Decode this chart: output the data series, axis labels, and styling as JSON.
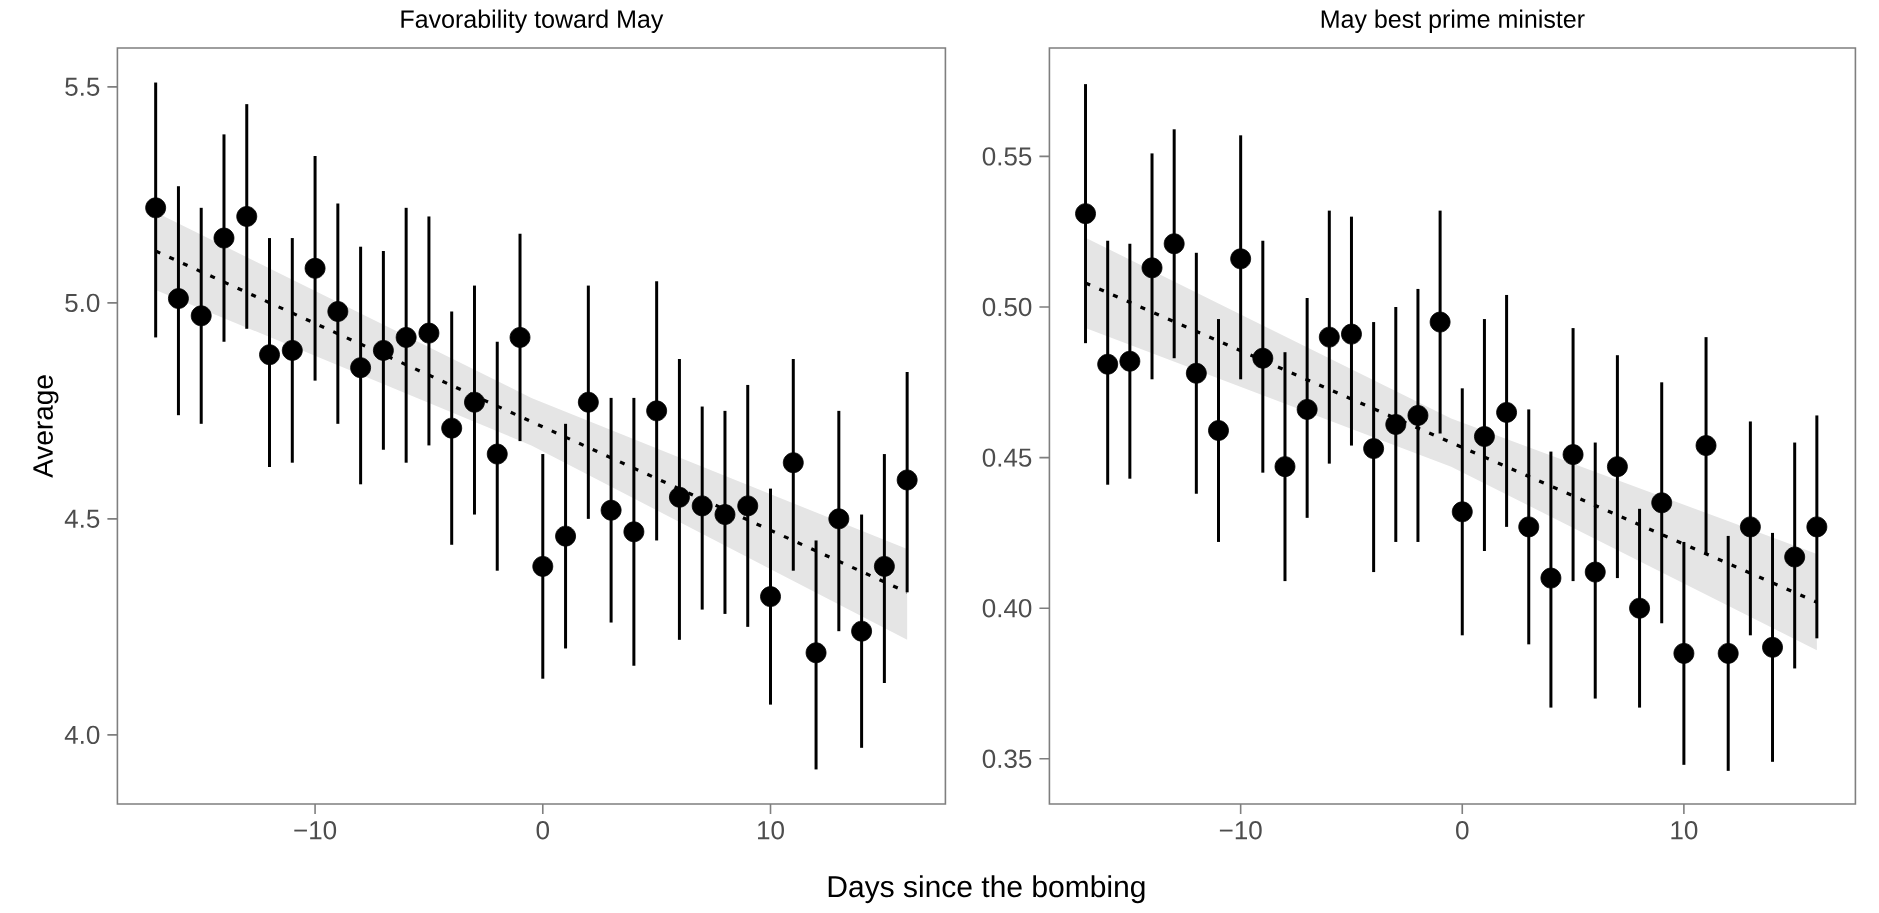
{
  "chart_data": [
    {
      "type": "scatter",
      "title": "Favorability toward May",
      "xlabel": "Days since the bombing",
      "ylabel": "Average",
      "xlim": [
        -18.68,
        17.68
      ],
      "ylim": [
        3.84,
        5.59
      ],
      "xticks": [
        {
          "value": -10,
          "label": "−10"
        },
        {
          "value": 0,
          "label": "0"
        },
        {
          "value": 10,
          "label": "10"
        }
      ],
      "yticks": [
        {
          "value": 4,
          "label": "4.0"
        },
        {
          "value": 4.5,
          "label": "4.5"
        },
        {
          "value": 5,
          "label": "5.0"
        },
        {
          "value": 5.5,
          "label": "5.5"
        }
      ],
      "x": [
        -17,
        -16,
        -15,
        -14,
        -13,
        -12,
        -11,
        -10,
        -9,
        -8,
        -7,
        -6,
        -5,
        -4,
        -3,
        -2,
        -1,
        0,
        1,
        2,
        3,
        4,
        5,
        6,
        7,
        8,
        9,
        10,
        11,
        12,
        13,
        14,
        15,
        16
      ],
      "series": [
        {
          "type": "line",
          "color": "#000000",
          "line_style": "dotted",
          "marker": "none",
          "x": [
            -17,
            -0.5,
            16
          ],
          "values": [
            5.12,
            4.725,
            4.33
          ],
          "lower": [
            5.03,
            4.67,
            4.22
          ],
          "upper": [
            5.21,
            4.78,
            4.43
          ]
        },
        {
          "color": "#000000",
          "marker": "circle",
          "values": [
            5.22,
            5.01,
            4.97,
            5.15,
            5.2,
            4.88,
            4.89,
            5.08,
            4.98,
            4.85,
            4.89,
            4.92,
            4.93,
            4.71,
            4.77,
            4.65,
            4.92,
            4.39,
            4.46,
            4.77,
            4.52,
            4.47,
            4.75,
            4.55,
            4.53,
            4.51,
            4.53,
            4.32,
            4.63,
            4.19,
            4.5,
            4.24,
            4.39,
            4.59
          ],
          "errors": [
            [
              4.92,
              5.51
            ],
            [
              4.74,
              5.27
            ],
            [
              4.72,
              5.22
            ],
            [
              4.91,
              5.39
            ],
            [
              4.94,
              5.46
            ],
            [
              4.62,
              5.15
            ],
            [
              4.63,
              5.15
            ],
            [
              4.82,
              5.34
            ],
            [
              4.72,
              5.23
            ],
            [
              4.58,
              5.13
            ],
            [
              4.66,
              5.12
            ],
            [
              4.63,
              5.22
            ],
            [
              4.67,
              5.2
            ],
            [
              4.44,
              4.98
            ],
            [
              4.51,
              5.04
            ],
            [
              4.38,
              4.91
            ],
            [
              4.68,
              5.16
            ],
            [
              4.13,
              4.65
            ],
            [
              4.2,
              4.72
            ],
            [
              4.5,
              5.04
            ],
            [
              4.26,
              4.78
            ],
            [
              4.16,
              4.78
            ],
            [
              4.45,
              5.05
            ],
            [
              4.22,
              4.87
            ],
            [
              4.29,
              4.76
            ],
            [
              4.28,
              4.75
            ],
            [
              4.25,
              4.81
            ],
            [
              4.07,
              4.57
            ],
            [
              4.38,
              4.87
            ],
            [
              3.92,
              4.45
            ],
            [
              4.24,
              4.75
            ],
            [
              3.97,
              4.51
            ],
            [
              4.12,
              4.65
            ],
            [
              4.33,
              4.84
            ]
          ]
        }
      ]
    },
    {
      "type": "scatter",
      "title": "May best prime minister",
      "xlim": [
        -18.63,
        17.74
      ],
      "ylim": [
        0.335,
        0.586
      ],
      "xticks": [
        {
          "value": -10,
          "label": "−10"
        },
        {
          "value": 0,
          "label": "0"
        },
        {
          "value": 10,
          "label": "10"
        }
      ],
      "yticks": [
        {
          "value": 0.35,
          "label": "0.35"
        },
        {
          "value": 0.4,
          "label": "0.40"
        },
        {
          "value": 0.45,
          "label": "0.45"
        },
        {
          "value": 0.5,
          "label": "0.50"
        },
        {
          "value": 0.55,
          "label": "0.55"
        }
      ],
      "x": [
        -17,
        -16,
        -15,
        -14,
        -13,
        -12,
        -11,
        -10,
        -9,
        -8,
        -7,
        -6,
        -5,
        -4,
        -3,
        -2,
        -1,
        0,
        1,
        2,
        3,
        4,
        5,
        6,
        7,
        8,
        9,
        10,
        11,
        12,
        13,
        14,
        15,
        16
      ],
      "series": [
        {
          "type": "line",
          "color": "#000000",
          "line_style": "dotted",
          "marker": "none",
          "x": [
            -17,
            -0.5,
            16
          ],
          "values": [
            0.508,
            0.455,
            0.402
          ],
          "lower": [
            0.493,
            0.447,
            0.386
          ],
          "upper": [
            0.523,
            0.463,
            0.418
          ]
        },
        {
          "color": "#000000",
          "marker": "circle",
          "values": [
            0.531,
            0.481,
            0.482,
            0.513,
            0.521,
            0.478,
            0.459,
            0.516,
            0.483,
            0.447,
            0.466,
            0.49,
            0.491,
            0.453,
            0.461,
            0.464,
            0.495,
            0.432,
            0.457,
            0.465,
            0.427,
            0.41,
            0.451,
            0.412,
            0.447,
            0.4,
            0.435,
            0.385,
            0.454,
            0.385,
            0.427,
            0.387,
            0.417,
            0.427
          ],
          "errors": [
            [
              0.488,
              0.574
            ],
            [
              0.441,
              0.522
            ],
            [
              0.443,
              0.521
            ],
            [
              0.476,
              0.551
            ],
            [
              0.483,
              0.559
            ],
            [
              0.438,
              0.518
            ],
            [
              0.422,
              0.496
            ],
            [
              0.476,
              0.557
            ],
            [
              0.445,
              0.522
            ],
            [
              0.409,
              0.485
            ],
            [
              0.43,
              0.503
            ],
            [
              0.448,
              0.532
            ],
            [
              0.454,
              0.53
            ],
            [
              0.412,
              0.495
            ],
            [
              0.422,
              0.5
            ],
            [
              0.422,
              0.506
            ],
            [
              0.458,
              0.532
            ],
            [
              0.391,
              0.473
            ],
            [
              0.419,
              0.496
            ],
            [
              0.427,
              0.504
            ],
            [
              0.388,
              0.466
            ],
            [
              0.367,
              0.452
            ],
            [
              0.409,
              0.493
            ],
            [
              0.37,
              0.455
            ],
            [
              0.41,
              0.484
            ],
            [
              0.367,
              0.433
            ],
            [
              0.395,
              0.475
            ],
            [
              0.348,
              0.422
            ],
            [
              0.418,
              0.49
            ],
            [
              0.346,
              0.424
            ],
            [
              0.391,
              0.462
            ],
            [
              0.349,
              0.425
            ],
            [
              0.38,
              0.455
            ],
            [
              0.39,
              0.464
            ]
          ]
        }
      ]
    }
  ]
}
